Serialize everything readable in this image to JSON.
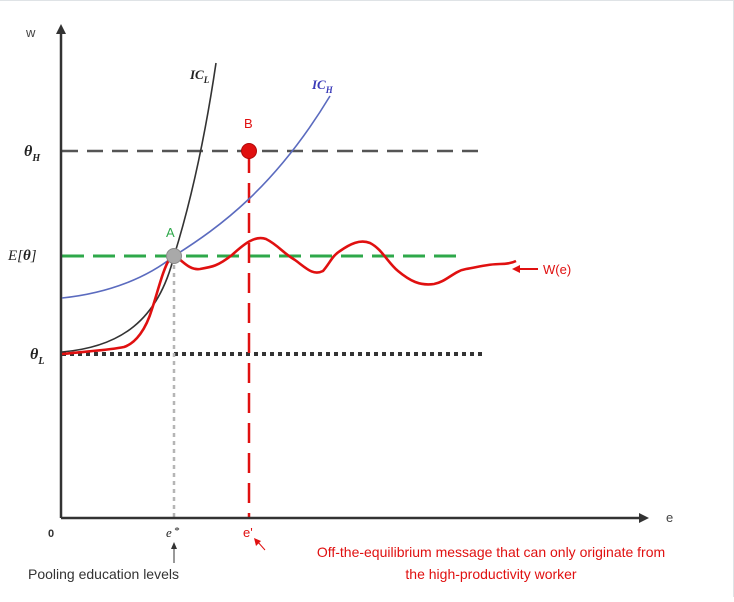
{
  "axes": {
    "y_label": "w",
    "x_label": "e",
    "origin": "0"
  },
  "levels": {
    "theta_h": {
      "symbol": "θ",
      "sub": "H"
    },
    "expected": {
      "text_prefix": "E[",
      "symbol": "θ",
      "text_suffix": "]"
    },
    "theta_l": {
      "symbol": "θ",
      "sub": "L"
    }
  },
  "curves": {
    "ic_l": {
      "name": "IC",
      "sub": "L"
    },
    "ic_h": {
      "name": "IC",
      "sub": "H"
    },
    "wage": {
      "name": "W(e)"
    }
  },
  "points": {
    "a": {
      "label": "A"
    },
    "b": {
      "label": "B"
    }
  },
  "education": {
    "e_star": {
      "name": "e",
      "mark": "*"
    },
    "e_prime": "e'"
  },
  "annotations": {
    "pooling": "Pooling education levels",
    "off_equilibrium_line1": "Off-the-equilibrium message that can only originate from",
    "off_equilibrium_line2": "the high-productivity worker"
  },
  "colors": {
    "axis": "#333333",
    "ic_l": "#333333",
    "ic_h": "#5b6bbf",
    "wage": "#e01010",
    "pooling_line": "#2ea84a",
    "level_line": "#555555",
    "point_a": "#a9a9a9",
    "point_b": "#e01010",
    "label_a": "#2ea84a",
    "label_red": "#e01010",
    "label_ic_h": "#3a3ab8"
  }
}
